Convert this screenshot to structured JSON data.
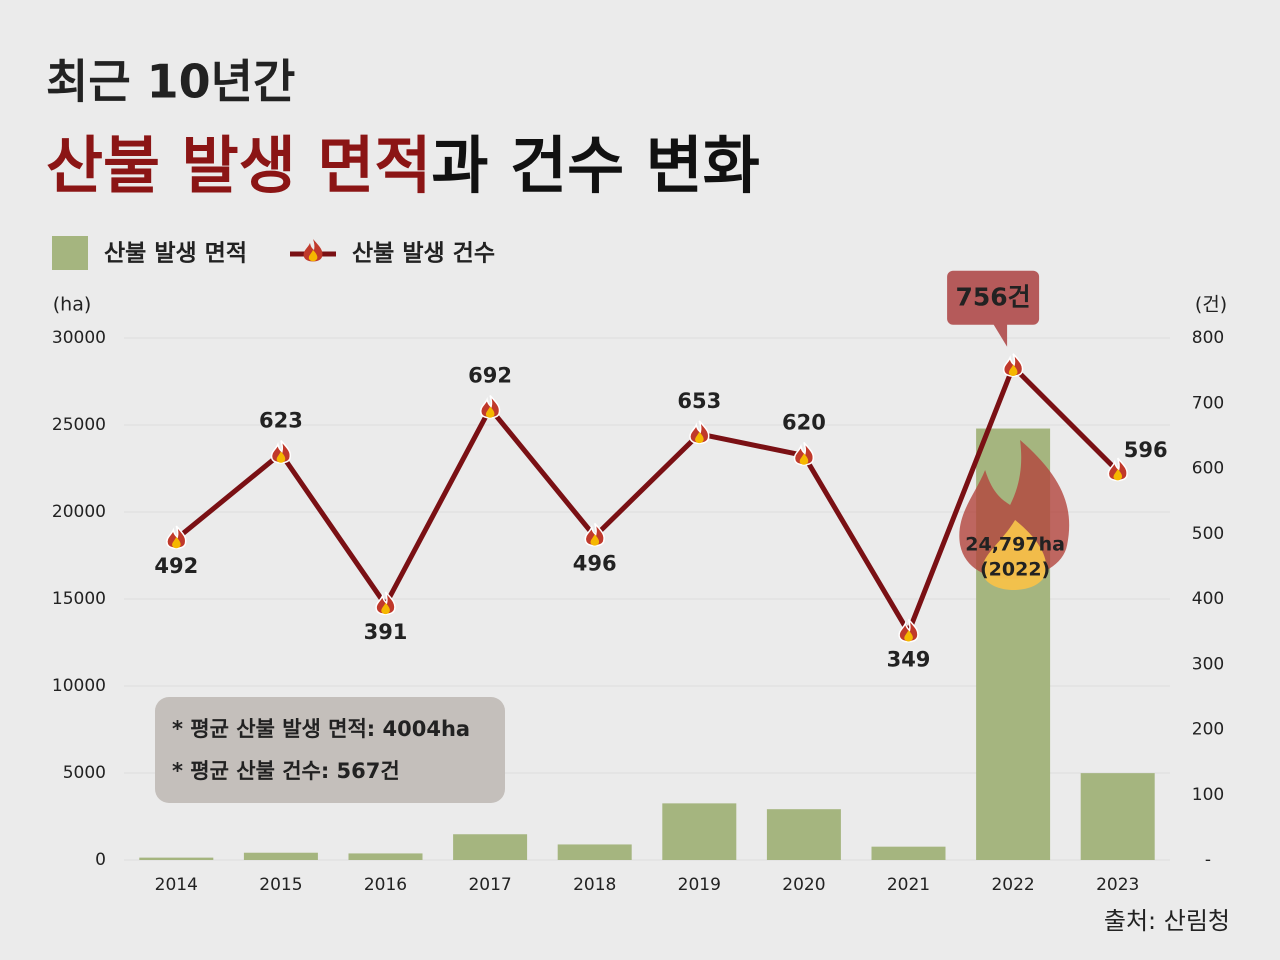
{
  "chart_data": {
    "type": "bar-line",
    "title": "최근 10년간",
    "subtitle_highlight": "산불 발생 면적",
    "subtitle_rest": "과 건수 변화",
    "y_label": "(ha)",
    "y2_label": "(건)",
    "categories": [
      "2014",
      "2015",
      "2016",
      "2017",
      "2018",
      "2019",
      "2020",
      "2021",
      "2022",
      "2023"
    ],
    "series": [
      {
        "name": "산불 발생 면적",
        "type": "bar",
        "color": "#a5b57f",
        "values": [
          137,
          418,
          378,
          1480,
          894,
          3255,
          2920,
          766,
          24797,
          4992
        ],
        "value_labels": [
          null,
          null,
          null,
          null,
          null,
          null,
          null,
          null,
          "24,797ha",
          null
        ]
      },
      {
        "name": "산불 발생 건수",
        "type": "line",
        "color": "#7a1014",
        "axis": "y2",
        "values": [
          492,
          623,
          391,
          692,
          496,
          653,
          620,
          349,
          756,
          596
        ],
        "value_labels": [
          "492",
          "623",
          "391",
          "692",
          "496",
          "653",
          "620",
          "349",
          "756건",
          "596"
        ]
      }
    ],
    "ylim": [
      0,
      30000
    ],
    "yticks": [
      0,
      5000,
      10000,
      15000,
      20000,
      25000,
      30000
    ],
    "y2lim": [
      0,
      800
    ],
    "y2ticks": [
      {
        "value": 0,
        "label": "-"
      },
      100,
      200,
      300,
      400,
      500,
      600,
      700,
      800
    ],
    "grid": true,
    "annotations": [
      "(2022)",
      "* 평균 산불 발생 면적: 4004ha",
      "* 평균 산불 건수: 567건"
    ],
    "source": "출처: 산림청"
  }
}
